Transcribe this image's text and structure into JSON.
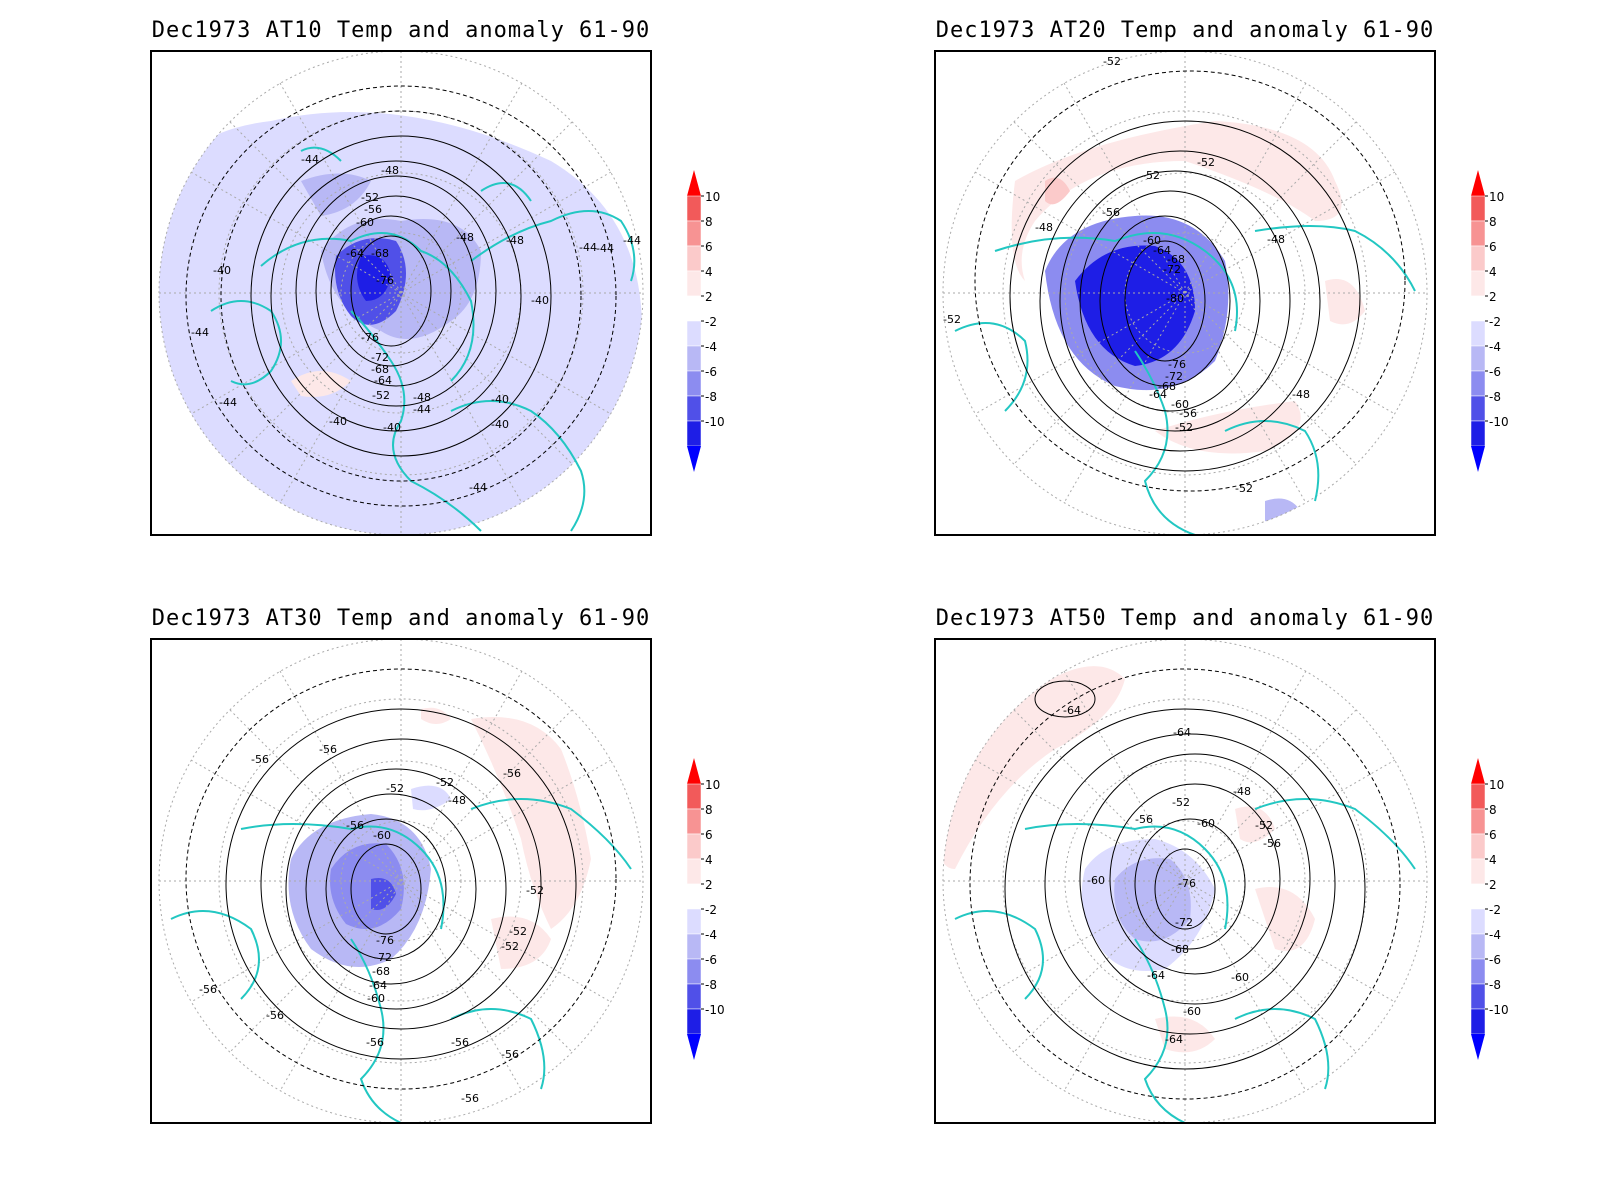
{
  "figure": {
    "colors": {
      "coastline": "#22c7c2",
      "contour": "#000000",
      "grid": "#aaaaaa",
      "frame": "#000000"
    }
  },
  "colorbar": {
    "labels": [
      "10",
      "8",
      "6",
      "4",
      "2",
      "-2",
      "-4",
      "-6",
      "-8",
      "-10"
    ],
    "colors": [
      "#ff0000",
      "#f25a5a",
      "#f79393",
      "#fbcaca",
      "#fde8e8",
      "#ffffff",
      "#dcdcff",
      "#b8b8f5",
      "#8c8cf0",
      "#5050e8",
      "#1e1ee6",
      "#0000ff"
    ]
  },
  "panels": [
    {
      "id": "at10",
      "title": "Dec1973 AT10 Temp and anomaly 61-90",
      "contour_labels": [
        "-44",
        "-48",
        "-52",
        "-56",
        "-60",
        "-64",
        "-68",
        "-76",
        "-76",
        "-72",
        "-68",
        "-64",
        "-52",
        "-48",
        "-44",
        "-40",
        "-40",
        "-40",
        "-40",
        "-44",
        "-44",
        "-44",
        "-48",
        "-48",
        "-44",
        "-44",
        "-44",
        "-40",
        "-40"
      ],
      "anomaly_regions": [
        {
          "sign": "negative",
          "level": "-4"
        },
        {
          "sign": "negative",
          "level": "-10"
        },
        {
          "sign": "negative",
          "level": "-2"
        },
        {
          "sign": "positive",
          "level": "2"
        }
      ]
    },
    {
      "id": "at20",
      "title": "Dec1973 AT20 Temp and anomaly 61-90",
      "contour_labels": [
        "-52",
        "-52",
        "-52",
        "-56",
        "-48",
        "-60",
        "-64",
        "-68",
        "-72",
        "-80",
        "-76",
        "-72",
        "-68",
        "-64",
        "-60",
        "-56",
        "-52",
        "-48",
        "-48",
        "-52",
        "-52"
      ],
      "anomaly_regions": [
        {
          "sign": "positive",
          "level": "2"
        },
        {
          "sign": "positive",
          "level": "4"
        },
        {
          "sign": "negative",
          "level": "-10"
        },
        {
          "sign": "negative",
          "level": "-6"
        }
      ]
    },
    {
      "id": "at30",
      "title": "Dec1973 AT30 Temp and anomaly 61-90",
      "contour_labels": [
        "-56",
        "-56",
        "-56",
        "-52",
        "-52",
        "-48",
        "-56",
        "-60",
        "-52",
        "-52",
        "-52",
        "-76",
        "-72",
        "-68",
        "-64",
        "-60",
        "-56",
        "-56",
        "-56",
        "-56",
        "-56",
        "-56"
      ],
      "anomaly_regions": [
        {
          "sign": "positive",
          "level": "2"
        },
        {
          "sign": "negative",
          "level": "-6"
        },
        {
          "sign": "negative",
          "level": "-2"
        }
      ]
    },
    {
      "id": "at50",
      "title": "Dec1973 AT50 Temp and anomaly 61-90",
      "contour_labels": [
        "-64",
        "-64",
        "-48",
        "-52",
        "-56",
        "-60",
        "-52",
        "-56",
        "-60",
        "-76",
        "-72",
        "-68",
        "-64",
        "-60",
        "-60",
        "-64"
      ],
      "anomaly_regions": [
        {
          "sign": "positive",
          "level": "2"
        },
        {
          "sign": "negative",
          "level": "-4"
        },
        {
          "sign": "negative",
          "level": "-2"
        }
      ]
    }
  ]
}
